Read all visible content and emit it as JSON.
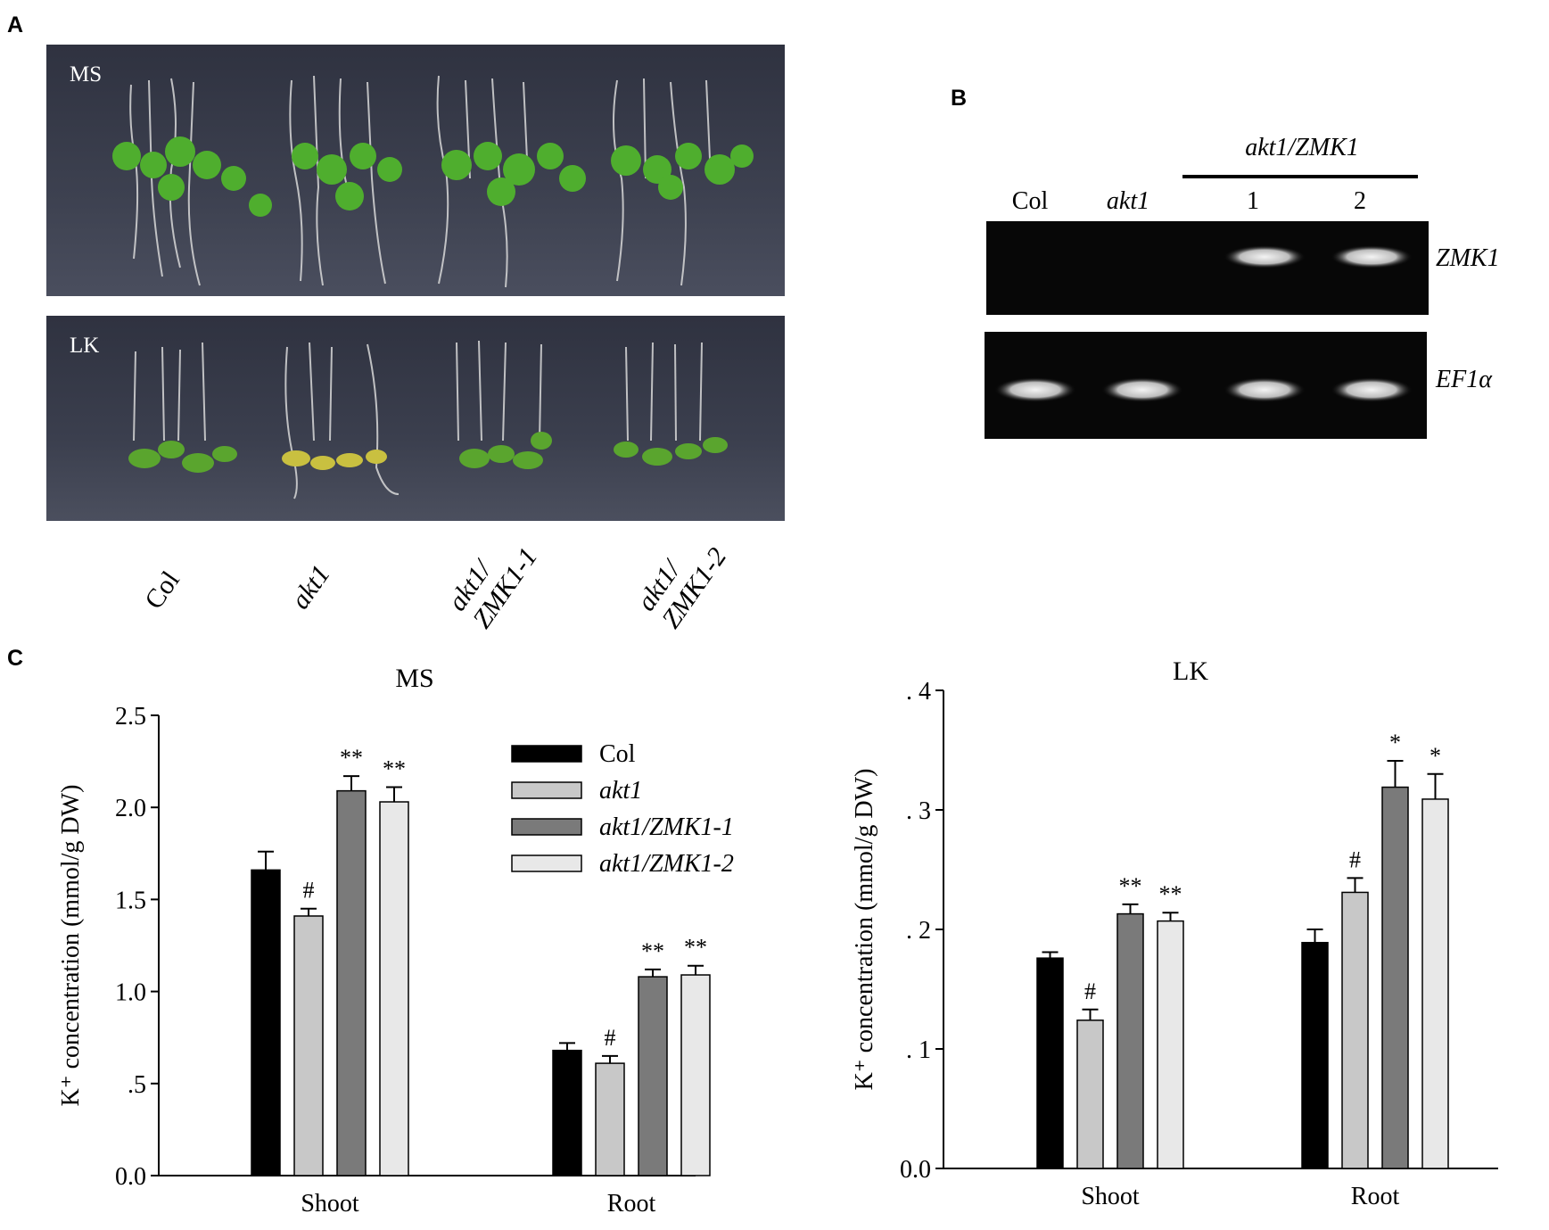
{
  "panels": {
    "a": "A",
    "b": "B",
    "c": "C"
  },
  "panel_a": {
    "top_plate_label": "MS",
    "bottom_plate_label": "LK",
    "genotypes": [
      {
        "line1": "Col",
        "line2": ""
      },
      {
        "line1": "akt1",
        "line2": ""
      },
      {
        "line1": "akt1/",
        "line2": "ZMK1-1"
      },
      {
        "line1": "akt1/",
        "line2": "ZMK1-2"
      }
    ]
  },
  "panel_b": {
    "group_label": "akt1/ZMK1",
    "lanes": [
      "Col",
      "akt1",
      "1",
      "2"
    ],
    "gene_top": "ZMK1",
    "gene_bottom": "EF1α",
    "zmk1_band_present": [
      false,
      false,
      true,
      true
    ],
    "ef1a_band_present": [
      true,
      true,
      true,
      true
    ]
  },
  "chart_data": [
    {
      "type": "bar",
      "title": "MS",
      "ylabel": "K⁺ concentration (mmol/g DW)",
      "categories": [
        "Shoot",
        "Root"
      ],
      "ylim": [
        0,
        2.5
      ],
      "yticks": [
        0.0,
        0.5,
        1.0,
        1.5,
        2.0,
        2.5
      ],
      "ytick_labels": [
        "0.0",
        ".5",
        "1.0",
        "1.5",
        "2.0",
        "2.5"
      ],
      "legend_position": "top-right",
      "series": [
        {
          "name": "Col",
          "color": "#000000",
          "values": [
            1.66,
            0.68
          ],
          "errors": [
            0.1,
            0.04
          ],
          "marks": [
            "",
            ""
          ]
        },
        {
          "name": "akt1",
          "color": "#c8c8c8",
          "values": [
            1.41,
            0.61
          ],
          "errors": [
            0.04,
            0.04
          ],
          "marks": [
            "#",
            "#"
          ]
        },
        {
          "name": "akt1/ZMK1-1",
          "color": "#7a7a7a",
          "values": [
            2.09,
            1.08
          ],
          "errors": [
            0.08,
            0.04
          ],
          "marks": [
            "**",
            "**"
          ]
        },
        {
          "name": "akt1/ZMK1-2",
          "color": "#e8e8e8",
          "values": [
            2.03,
            1.09
          ],
          "errors": [
            0.08,
            0.05
          ],
          "marks": [
            "**",
            "**"
          ]
        }
      ]
    },
    {
      "type": "bar",
      "title": "LK",
      "ylabel": "K⁺ concentration (mmol/g DW)",
      "categories": [
        "Shoot",
        "Root"
      ],
      "ylim": [
        0,
        0.4
      ],
      "yticks": [
        0.0,
        0.1,
        0.2,
        0.3,
        0.4
      ],
      "ytick_labels": [
        "0.0",
        ". 1",
        ". 2",
        ". 3",
        ". 4"
      ],
      "series": [
        {
          "name": "Col",
          "color": "#000000",
          "values": [
            0.176,
            0.189
          ],
          "errors": [
            0.005,
            0.011
          ],
          "marks": [
            "",
            ""
          ]
        },
        {
          "name": "akt1",
          "color": "#c8c8c8",
          "values": [
            0.124,
            0.231
          ],
          "errors": [
            0.009,
            0.012
          ],
          "marks": [
            "#",
            "#"
          ]
        },
        {
          "name": "akt1/ZMK1-1",
          "color": "#7a7a7a",
          "values": [
            0.213,
            0.319
          ],
          "errors": [
            0.008,
            0.022
          ],
          "marks": [
            "**",
            "*"
          ]
        },
        {
          "name": "akt1/ZMK1-2",
          "color": "#e8e8e8",
          "values": [
            0.207,
            0.309
          ],
          "errors": [
            0.007,
            0.021
          ],
          "marks": [
            "**",
            "*"
          ]
        }
      ]
    }
  ]
}
